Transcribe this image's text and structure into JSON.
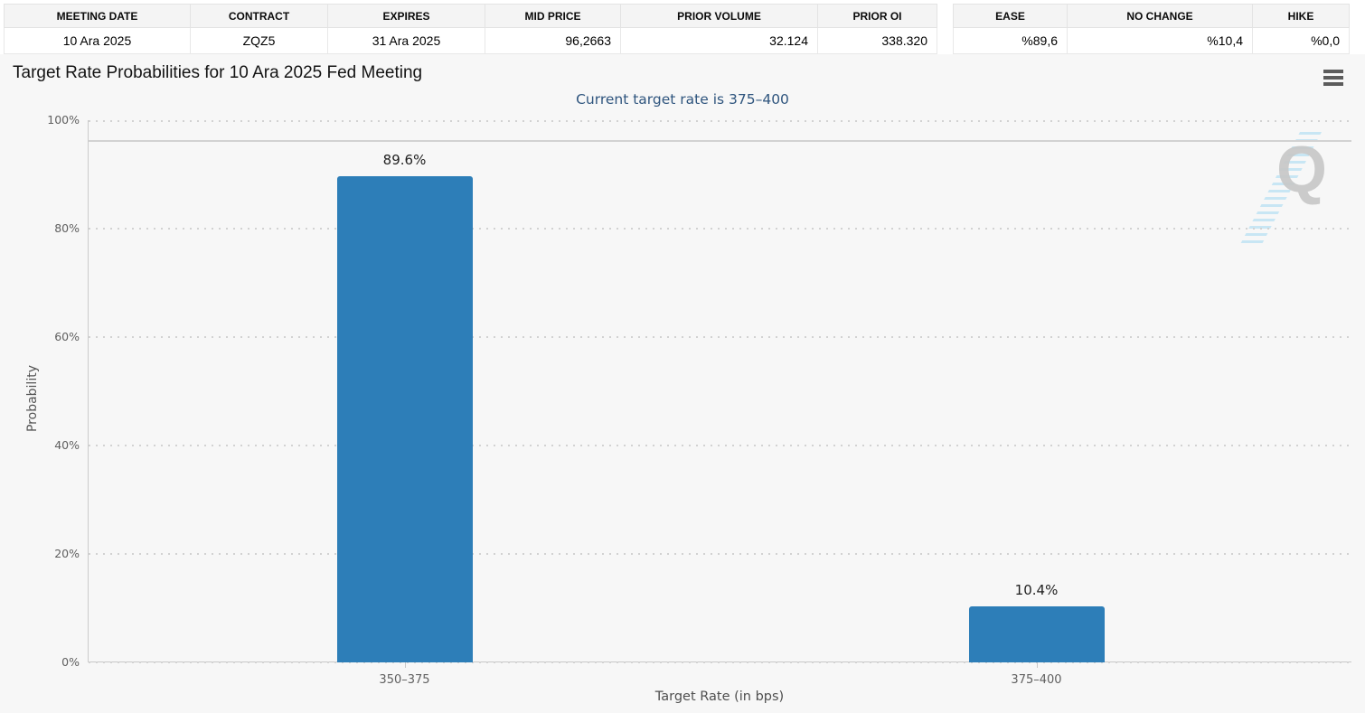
{
  "tables": {
    "contract": {
      "headers": [
        "MEETING DATE",
        "CONTRACT",
        "EXPIRES",
        "MID PRICE",
        "PRIOR VOLUME",
        "PRIOR OI"
      ],
      "row": [
        "10 Ara 2025",
        "ZQZ5",
        "31 Ara 2025",
        "96,2663",
        "32.124",
        "338.320"
      ]
    },
    "moves": {
      "headers": [
        "EASE",
        "NO CHANGE",
        "HIKE"
      ],
      "row": [
        "%89,6",
        "%10,4",
        "%0,0"
      ]
    }
  },
  "chart": {
    "menu_icon": "hamburger-icon",
    "watermark_letter": "Q"
  },
  "chart_data": {
    "type": "bar",
    "title": "Target Rate Probabilities for 10 Ara 2025 Fed Meeting",
    "subtitle": "Current target rate is 375–400",
    "categories": [
      "350–375",
      "375–400"
    ],
    "values": [
      89.6,
      10.4
    ],
    "data_labels": [
      "89.6%",
      "10.4%"
    ],
    "xlabel": "Target Rate (in bps)",
    "ylabel": "Probability",
    "ylim": [
      0,
      100
    ],
    "yticks": [
      0,
      20,
      40,
      60,
      80,
      100
    ],
    "ytick_suffix": "%",
    "plotline_y": 96.26,
    "grid": "dotted-horizontal",
    "legend": "none",
    "bar_color": "#2d7eb8"
  }
}
